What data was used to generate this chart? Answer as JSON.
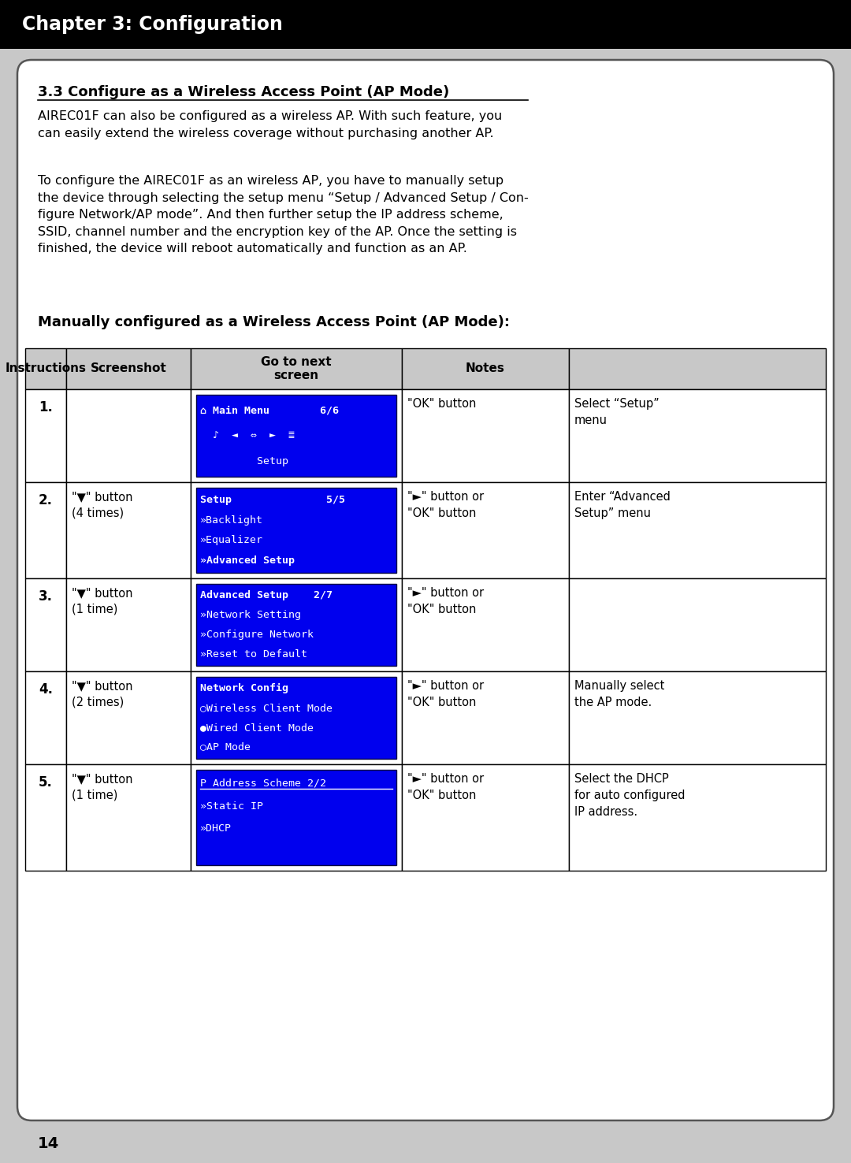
{
  "title": "Chapter 3: Configuration",
  "title_bg": "#000000",
  "title_color": "#ffffff",
  "title_fontsize": 17,
  "section_heading": "3.3 Configure as a Wireless Access Point (AP Mode)",
  "intro_text1": "AIREC01F can also be configured as a wireless AP. With such feature, you\ncan easily extend the wireless coverage without purchasing another AP.",
  "intro_text2": "To configure the AIREC01F as an wireless AP, you have to manually setup\nthe device through selecting the setup menu “Setup / Advanced Setup / Con-\nfigure Network/AP mode”. And then further setup the IP address scheme,\nSSID, channel number and the encryption key of the AP. Once the setting is\nfinished, the device will reboot automatically and function as an AP.",
  "table_heading": "Manually configured as a Wireless Access Point (AP Mode):",
  "header_bg": "#c8c8c8",
  "blue_bg": "#0000ee",
  "col_headers": [
    "Instructions",
    "Screenshot",
    "Go to next\nscreen",
    "Notes"
  ],
  "rows": [
    {
      "num": "1.",
      "instruction": "",
      "screenshot_lines": [
        {
          "text": "⌂ Main Menu        6/6",
          "bold": true,
          "underline": false
        },
        {
          "text": "  ♪  ◄  ⇔  ►  ≣",
          "bold": false,
          "underline": false
        },
        {
          "text": "         Setup",
          "bold": false,
          "underline": false
        }
      ],
      "goto": "\"OK\" button",
      "notes": "Select “Setup”\nmenu"
    },
    {
      "num": "2.",
      "instruction": "\"▼\" button\n(4 times)",
      "screenshot_lines": [
        {
          "text": "Setup               5/5",
          "bold": true,
          "underline": false
        },
        {
          "text": "»Backlight",
          "bold": false,
          "underline": false
        },
        {
          "text": "»Equalizer",
          "bold": false,
          "underline": false
        },
        {
          "text": "»Advanced Setup",
          "bold": true,
          "underline": false
        }
      ],
      "goto": "\"►\" button or\n\"OK\" button",
      "notes": "Enter “Advanced\nSetup” menu"
    },
    {
      "num": "3.",
      "instruction": "\"▼\" button\n(1 time)",
      "screenshot_lines": [
        {
          "text": "Advanced Setup    2/7",
          "bold": true,
          "underline": false
        },
        {
          "text": "»Network Setting",
          "bold": false,
          "underline": false
        },
        {
          "text": "»Configure Network",
          "bold": false,
          "underline": false
        },
        {
          "text": "»Reset to Default",
          "bold": false,
          "underline": false
        }
      ],
      "goto": "\"►\" button or\n\"OK\" button",
      "notes": ""
    },
    {
      "num": "4.",
      "instruction": "\"▼\" button\n(2 times)",
      "screenshot_lines": [
        {
          "text": "Network Config",
          "bold": true,
          "underline": false
        },
        {
          "text": "○Wireless Client Mode",
          "bold": false,
          "underline": false
        },
        {
          "text": "●Wired Client Mode",
          "bold": false,
          "underline": false
        },
        {
          "text": "○AP Mode",
          "bold": false,
          "underline": false
        }
      ],
      "goto": "\"►\" button or\n\"OK\" button",
      "notes": "Manually select\nthe AP mode."
    },
    {
      "num": "5.",
      "instruction": "\"▼\" button\n(1 time)",
      "screenshot_lines": [
        {
          "text": "P Address Scheme 2/2",
          "bold": false,
          "underline": true
        },
        {
          "text": "»Static IP",
          "bold": false,
          "underline": false
        },
        {
          "text": "»DHCP",
          "bold": false,
          "underline": false
        },
        {
          "text": "",
          "bold": false,
          "underline": false
        }
      ],
      "goto": "\"►\" button or\n\"OK\" button",
      "notes": "Select the DHCP\nfor auto configured\nIP address."
    }
  ],
  "footer_num": "14"
}
